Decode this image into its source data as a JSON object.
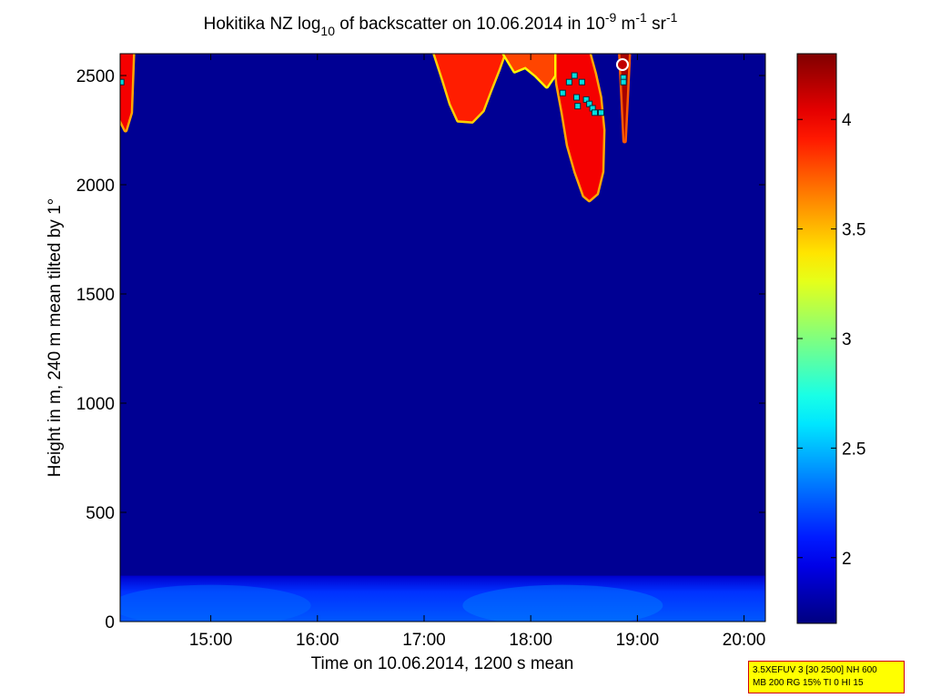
{
  "chart_data": {
    "type": "heatmap",
    "title": {
      "prefix": "Hokitika NZ log",
      "prefix_sub": "10",
      "middle": " of backscatter on 10.06.2014 in 10",
      "exp1": "-9",
      "unit1": " m",
      "exp2": "-1",
      "unit2": " sr",
      "exp3": "-1"
    },
    "xlabel": "Time on 10.06.2014, 1200 s mean",
    "ylabel": "Height in m, 240 m mean tilted by 1°",
    "x_unit": "decimal hour",
    "xlim": [
      14.15,
      20.2
    ],
    "ylim": [
      0,
      2600
    ],
    "x_ticks": [
      {
        "value": 15,
        "label": "15:00"
      },
      {
        "value": 16,
        "label": "16:00"
      },
      {
        "value": 17,
        "label": "17:00"
      },
      {
        "value": 18,
        "label": "18:00"
      },
      {
        "value": 19,
        "label": "19:00"
      },
      {
        "value": 20,
        "label": "20:00"
      }
    ],
    "y_ticks": [
      {
        "value": 0,
        "label": "0"
      },
      {
        "value": 500,
        "label": "500"
      },
      {
        "value": 1000,
        "label": "1000"
      },
      {
        "value": 1500,
        "label": "1500"
      },
      {
        "value": 2000,
        "label": "2000"
      },
      {
        "value": 2500,
        "label": "2500"
      }
    ],
    "colorbar": {
      "colormap": "jet",
      "clim": [
        1.7,
        4.3
      ],
      "ticks": [
        {
          "value": 2,
          "label": "2"
        },
        {
          "value": 2.5,
          "label": "2.5"
        },
        {
          "value": 3,
          "label": "3"
        },
        {
          "value": 3.5,
          "label": "3.5"
        },
        {
          "value": 4,
          "label": "4"
        }
      ]
    },
    "background_value": 1.75,
    "boundary_layer": {
      "top_height": 210,
      "value_near_ground": 2.25,
      "bumps": [
        {
          "time": 18.3,
          "value": 2.35
        },
        {
          "time": 15.0,
          "value": 2.3
        }
      ]
    },
    "cloud_layers": [
      {
        "name": "",
        "value": 3.9,
        "profile": [
          [
            17.1,
            2600
          ],
          [
            17.18,
            2480
          ],
          [
            17.25,
            2370
          ],
          [
            17.32,
            2295
          ],
          [
            17.45,
            2290
          ],
          [
            17.55,
            2340
          ],
          [
            17.62,
            2430
          ],
          [
            17.7,
            2530
          ],
          [
            17.75,
            2600
          ]
        ]
      },
      {
        "name": "",
        "value": 4.0,
        "profile": [
          [
            18.22,
            2600
          ],
          [
            18.25,
            2460
          ],
          [
            18.3,
            2330
          ],
          [
            18.35,
            2180
          ],
          [
            18.42,
            2060
          ],
          [
            18.5,
            1950
          ],
          [
            18.55,
            1930
          ],
          [
            18.62,
            1960
          ],
          [
            18.67,
            2060
          ],
          [
            18.68,
            2250
          ],
          [
            18.65,
            2400
          ],
          [
            18.6,
            2510
          ],
          [
            18.55,
            2600
          ]
        ]
      },
      {
        "name": "",
        "value": 3.8,
        "profile": [
          [
            17.75,
            2600
          ],
          [
            17.85,
            2520
          ],
          [
            17.95,
            2540
          ],
          [
            18.05,
            2500
          ],
          [
            18.15,
            2450
          ],
          [
            18.22,
            2500
          ],
          [
            18.22,
            2600
          ]
        ]
      },
      {
        "name": "",
        "value": 4.0,
        "profile": [
          [
            14.15,
            2600
          ],
          [
            14.15,
            2300
          ],
          [
            14.2,
            2250
          ],
          [
            14.25,
            2330
          ],
          [
            14.27,
            2600
          ]
        ]
      },
      {
        "name": "",
        "value": 4.2,
        "profile": [
          [
            18.84,
            2600
          ],
          [
            18.86,
            2400
          ],
          [
            18.88,
            2200
          ],
          [
            18.9,
            2400
          ],
          [
            18.92,
            2600
          ]
        ]
      }
    ],
    "cloud_base_markers": [
      {
        "time": 14.16,
        "height": 2470
      },
      {
        "time": 18.3,
        "height": 2420
      },
      {
        "time": 18.36,
        "height": 2470
      },
      {
        "time": 18.41,
        "height": 2500
      },
      {
        "time": 18.43,
        "height": 2400
      },
      {
        "time": 18.44,
        "height": 2360
      },
      {
        "time": 18.48,
        "height": 2470
      },
      {
        "time": 18.52,
        "height": 2390
      },
      {
        "time": 18.55,
        "height": 2370
      },
      {
        "time": 18.58,
        "height": 2350
      },
      {
        "time": 18.6,
        "height": 2330
      },
      {
        "time": 18.66,
        "height": 2330
      },
      {
        "time": 18.87,
        "height": 2490
      },
      {
        "time": 18.87,
        "height": 2470
      }
    ],
    "circled_marker": {
      "time": 18.86,
      "height": 2550
    }
  },
  "info_box": {
    "line1": "3.5XEFUV 3 [30 2500] NH 600",
    "line2": "MB 200 RG 15% TI 0 HI 15"
  }
}
